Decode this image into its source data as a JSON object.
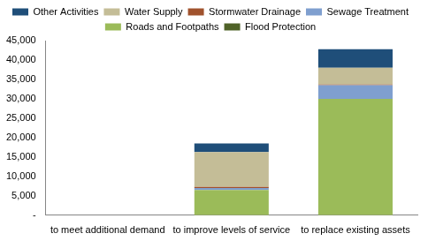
{
  "chart_data": {
    "type": "bar",
    "stacked": true,
    "grid": false,
    "legend": "top",
    "categories": [
      "to meet additional demand",
      "to improve levels of service",
      "to replace existing assets"
    ],
    "series": [
      {
        "name": "Other Activities",
        "color": "#1f4e79",
        "values": [
          0,
          2200,
          4800
        ]
      },
      {
        "name": "Water Supply",
        "color": "#c4bd97",
        "values": [
          0,
          9000,
          4300
        ]
      },
      {
        "name": "Stormwater Drainage",
        "color": "#a0522d",
        "values": [
          0,
          300,
          200
        ]
      },
      {
        "name": "Sewage Treatment",
        "color": "#7f9fcf",
        "values": [
          0,
          500,
          3500
        ]
      },
      {
        "name": "Roads and Footpaths",
        "color": "#9bbb59",
        "values": [
          0,
          6500,
          30000
        ]
      },
      {
        "name": "Flood Protection",
        "color": "#4f6228",
        "values": [
          0,
          0,
          0
        ]
      }
    ],
    "ylim": [
      0,
      45000
    ],
    "yticks": [
      {
        "value": 0,
        "label": "-"
      },
      {
        "value": 5000,
        "label": "5,000"
      },
      {
        "value": 10000,
        "label": "10,000"
      },
      {
        "value": 15000,
        "label": "15,000"
      },
      {
        "value": 20000,
        "label": "20,000"
      },
      {
        "value": 25000,
        "label": "25,000"
      },
      {
        "value": 30000,
        "label": "30,000"
      },
      {
        "value": 35000,
        "label": "35,000"
      },
      {
        "value": 40000,
        "label": "40,000"
      },
      {
        "value": 45000,
        "label": "45,000"
      }
    ]
  }
}
